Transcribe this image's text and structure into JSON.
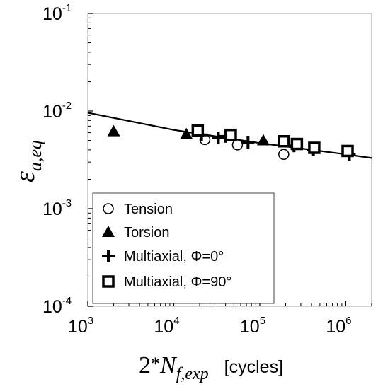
{
  "chart_data": {
    "type": "scatter",
    "x_scale": "log",
    "y_scale": "log",
    "xlim": [
      1000,
      2000000
    ],
    "ylim": [
      0.0001,
      0.1
    ],
    "x_ticks": [
      {
        "value": 1000,
        "base": "10",
        "exp": "3"
      },
      {
        "value": 10000,
        "base": "10",
        "exp": "4"
      },
      {
        "value": 100000,
        "base": "10",
        "exp": "5"
      },
      {
        "value": 1000000,
        "base": "10",
        "exp": "6"
      }
    ],
    "y_ticks": [
      {
        "value": 0.1,
        "base": "10",
        "exp": "-1"
      },
      {
        "value": 0.01,
        "base": "10",
        "exp": "-2"
      },
      {
        "value": 0.001,
        "base": "10",
        "exp": "-3"
      },
      {
        "value": 0.0001,
        "base": "10",
        "exp": "-4"
      }
    ],
    "xlabel": {
      "prefix": "2",
      "star": "*",
      "main": "N",
      "sub": "f,exp",
      "unit": "[cycles]"
    },
    "ylabel": {
      "main": "ε",
      "sub": "a,eq"
    },
    "grid": false,
    "legend_position": "bottom-left",
    "series": [
      {
        "name": "Tension",
        "marker": "circle",
        "points": [
          {
            "x": 23000,
            "y": 0.0051
          },
          {
            "x": 55000,
            "y": 0.0045
          },
          {
            "x": 190000,
            "y": 0.0036
          }
        ]
      },
      {
        "name": "Torsion",
        "marker": "triangle",
        "points": [
          {
            "x": 2000,
            "y": 0.0062
          },
          {
            "x": 14000,
            "y": 0.0058
          },
          {
            "x": 110000,
            "y": 0.005
          }
        ]
      },
      {
        "name": "Multiaxial, Φ=0°",
        "marker": "plus",
        "points": [
          {
            "x": 21000,
            "y": 0.0057
          },
          {
            "x": 33000,
            "y": 0.0053
          },
          {
            "x": 40000,
            "y": 0.0055
          },
          {
            "x": 73000,
            "y": 0.0048
          },
          {
            "x": 250000,
            "y": 0.0044
          },
          {
            "x": 420000,
            "y": 0.004
          },
          {
            "x": 1100000,
            "y": 0.0036
          }
        ]
      },
      {
        "name": "Multiaxial, Φ=90°",
        "marker": "square",
        "points": [
          {
            "x": 19000,
            "y": 0.0063
          },
          {
            "x": 46000,
            "y": 0.0057
          },
          {
            "x": 190000,
            "y": 0.0049
          },
          {
            "x": 270000,
            "y": 0.0046
          },
          {
            "x": 430000,
            "y": 0.0042
          },
          {
            "x": 1050000,
            "y": 0.0039
          }
        ]
      }
    ],
    "fit_curve": {
      "type": "line",
      "points": [
        {
          "x": 1000,
          "y": 0.0096
        },
        {
          "x": 10000,
          "y": 0.0064
        },
        {
          "x": 100000,
          "y": 0.0047
        },
        {
          "x": 1000000,
          "y": 0.0036
        },
        {
          "x": 2000000,
          "y": 0.0033
        }
      ]
    }
  }
}
